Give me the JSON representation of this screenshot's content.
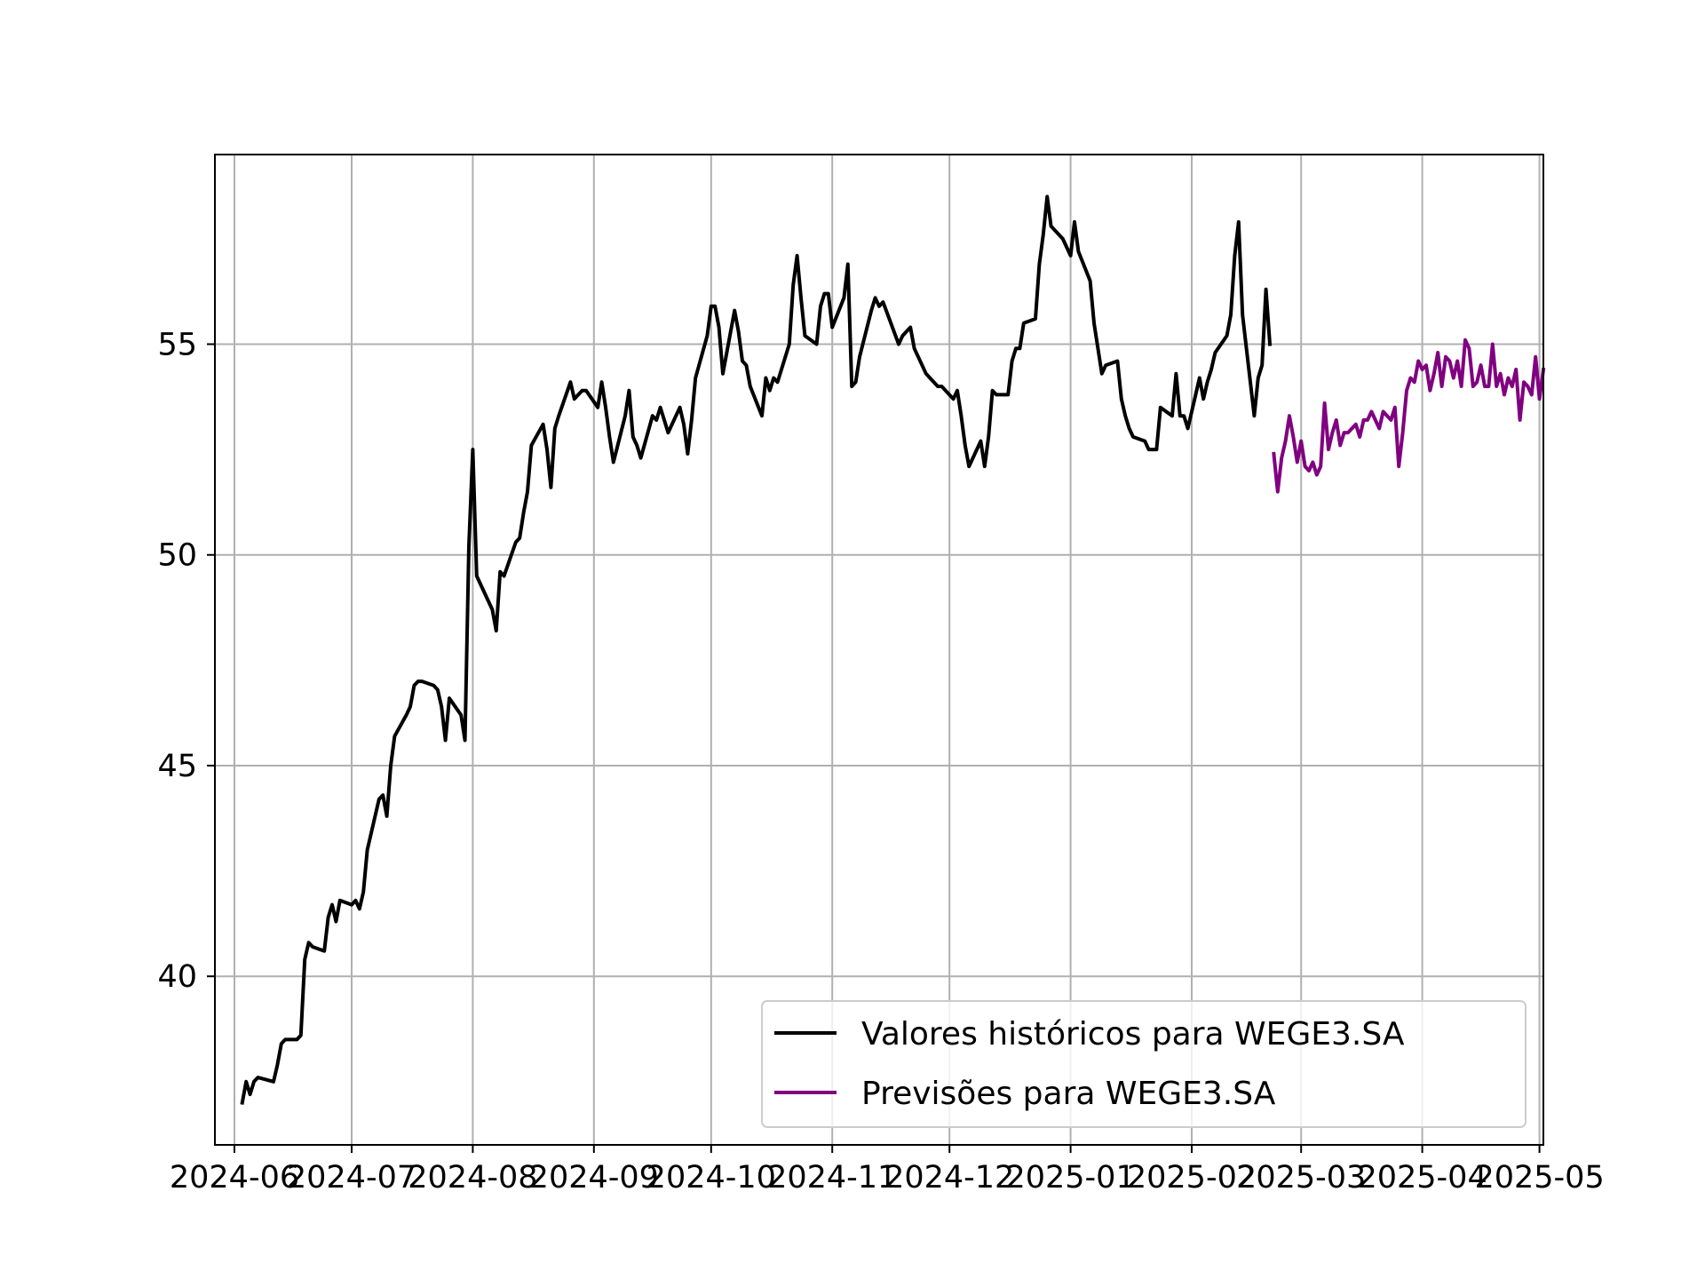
{
  "chart_data": {
    "type": "line",
    "title": "",
    "xlabel": "",
    "ylabel": "",
    "grid": true,
    "legend_position": "bottom-right",
    "xlim": [
      "2024-05-27",
      "2025-05-02"
    ],
    "ylim": [
      36,
      59.5
    ],
    "x_ticks": [
      {
        "date": "2024-06-01",
        "label": "2024-06"
      },
      {
        "date": "2024-07-01",
        "label": "2024-07"
      },
      {
        "date": "2024-08-01",
        "label": "2024-08"
      },
      {
        "date": "2024-09-01",
        "label": "2024-09"
      },
      {
        "date": "2024-10-01",
        "label": "2024-10"
      },
      {
        "date": "2024-11-01",
        "label": "2024-11"
      },
      {
        "date": "2024-12-01",
        "label": "2024-12"
      },
      {
        "date": "2025-01-01",
        "label": "2025-01"
      },
      {
        "date": "2025-02-01",
        "label": "2025-02"
      },
      {
        "date": "2025-03-01",
        "label": "2025-03"
      },
      {
        "date": "2025-04-01",
        "label": "2025-04"
      },
      {
        "date": "2025-05-01",
        "label": "2025-05"
      }
    ],
    "y_ticks": [
      {
        "value": 40,
        "label": "40"
      },
      {
        "value": 45,
        "label": "45"
      },
      {
        "value": 50,
        "label": "50"
      },
      {
        "value": 55,
        "label": "55"
      }
    ],
    "series": [
      {
        "name": "Valores históricos para WEGE3.SA",
        "color": "#000000",
        "points": [
          [
            "2024-06-03",
            37.0
          ],
          [
            "2024-06-04",
            37.5
          ],
          [
            "2024-06-05",
            37.2
          ],
          [
            "2024-06-06",
            37.5
          ],
          [
            "2024-06-07",
            37.6
          ],
          [
            "2024-06-11",
            37.5
          ],
          [
            "2024-06-12",
            37.9
          ],
          [
            "2024-06-13",
            38.4
          ],
          [
            "2024-06-14",
            38.5
          ],
          [
            "2024-06-17",
            38.5
          ],
          [
            "2024-06-18",
            38.6
          ],
          [
            "2024-06-19",
            40.4
          ],
          [
            "2024-06-20",
            40.8
          ],
          [
            "2024-06-21",
            40.7
          ],
          [
            "2024-06-24",
            40.6
          ],
          [
            "2024-06-25",
            41.4
          ],
          [
            "2024-06-26",
            41.7
          ],
          [
            "2024-06-27",
            41.3
          ],
          [
            "2024-06-28",
            41.8
          ],
          [
            "2024-07-01",
            41.7
          ],
          [
            "2024-07-02",
            41.8
          ],
          [
            "2024-07-03",
            41.6
          ],
          [
            "2024-07-04",
            42.0
          ],
          [
            "2024-07-05",
            43.0
          ],
          [
            "2024-07-08",
            44.2
          ],
          [
            "2024-07-09",
            44.3
          ],
          [
            "2024-07-10",
            43.8
          ],
          [
            "2024-07-11",
            45.0
          ],
          [
            "2024-07-12",
            45.7
          ],
          [
            "2024-07-15",
            46.2
          ],
          [
            "2024-07-16",
            46.4
          ],
          [
            "2024-07-17",
            46.9
          ],
          [
            "2024-07-18",
            47.0
          ],
          [
            "2024-07-19",
            47.0
          ],
          [
            "2024-07-22",
            46.9
          ],
          [
            "2024-07-23",
            46.8
          ],
          [
            "2024-07-24",
            46.4
          ],
          [
            "2024-07-25",
            45.6
          ],
          [
            "2024-07-26",
            46.6
          ],
          [
            "2024-07-29",
            46.2
          ],
          [
            "2024-07-30",
            45.6
          ],
          [
            "2024-07-31",
            50.2
          ],
          [
            "2024-08-01",
            52.5
          ],
          [
            "2024-08-02",
            49.5
          ],
          [
            "2024-08-05",
            48.9
          ],
          [
            "2024-08-06",
            48.7
          ],
          [
            "2024-08-07",
            48.2
          ],
          [
            "2024-08-08",
            49.6
          ],
          [
            "2024-08-09",
            49.5
          ],
          [
            "2024-08-12",
            50.3
          ],
          [
            "2024-08-13",
            50.4
          ],
          [
            "2024-08-14",
            51.0
          ],
          [
            "2024-08-15",
            51.5
          ],
          [
            "2024-08-16",
            52.6
          ],
          [
            "2024-08-19",
            53.1
          ],
          [
            "2024-08-20",
            52.5
          ],
          [
            "2024-08-21",
            51.6
          ],
          [
            "2024-08-22",
            53.0
          ],
          [
            "2024-08-23",
            53.3
          ],
          [
            "2024-08-26",
            54.1
          ],
          [
            "2024-08-27",
            53.7
          ],
          [
            "2024-08-28",
            53.8
          ],
          [
            "2024-08-29",
            53.9
          ],
          [
            "2024-08-30",
            53.9
          ],
          [
            "2024-09-02",
            53.5
          ],
          [
            "2024-09-03",
            54.1
          ],
          [
            "2024-09-04",
            53.5
          ],
          [
            "2024-09-05",
            52.8
          ],
          [
            "2024-09-06",
            52.2
          ],
          [
            "2024-09-09",
            53.3
          ],
          [
            "2024-09-10",
            53.9
          ],
          [
            "2024-09-11",
            52.8
          ],
          [
            "2024-09-12",
            52.6
          ],
          [
            "2024-09-13",
            52.3
          ],
          [
            "2024-09-16",
            53.3
          ],
          [
            "2024-09-17",
            53.2
          ],
          [
            "2024-09-18",
            53.5
          ],
          [
            "2024-09-19",
            53.2
          ],
          [
            "2024-09-20",
            52.9
          ],
          [
            "2024-09-23",
            53.5
          ],
          [
            "2024-09-24",
            53.1
          ],
          [
            "2024-09-25",
            52.4
          ],
          [
            "2024-09-26",
            53.2
          ],
          [
            "2024-09-27",
            54.2
          ],
          [
            "2024-09-30",
            55.2
          ],
          [
            "2024-10-01",
            55.9
          ],
          [
            "2024-10-02",
            55.9
          ],
          [
            "2024-10-03",
            55.4
          ],
          [
            "2024-10-04",
            54.3
          ],
          [
            "2024-10-07",
            55.8
          ],
          [
            "2024-10-08",
            55.3
          ],
          [
            "2024-10-09",
            54.6
          ],
          [
            "2024-10-10",
            54.5
          ],
          [
            "2024-10-11",
            54.0
          ],
          [
            "2024-10-14",
            53.3
          ],
          [
            "2024-10-15",
            54.2
          ],
          [
            "2024-10-16",
            53.9
          ],
          [
            "2024-10-17",
            54.2
          ],
          [
            "2024-10-18",
            54.1
          ],
          [
            "2024-10-21",
            55.0
          ],
          [
            "2024-10-22",
            56.4
          ],
          [
            "2024-10-23",
            57.1
          ],
          [
            "2024-10-24",
            56.1
          ],
          [
            "2024-10-25",
            55.2
          ],
          [
            "2024-10-28",
            55.0
          ],
          [
            "2024-10-29",
            55.9
          ],
          [
            "2024-10-30",
            56.2
          ],
          [
            "2024-10-31",
            56.2
          ],
          [
            "2024-11-01",
            55.4
          ],
          [
            "2024-11-04",
            56.1
          ],
          [
            "2024-11-05",
            56.9
          ],
          [
            "2024-11-06",
            54.0
          ],
          [
            "2024-11-07",
            54.1
          ],
          [
            "2024-11-08",
            54.7
          ],
          [
            "2024-11-11",
            55.8
          ],
          [
            "2024-11-12",
            56.1
          ],
          [
            "2024-11-13",
            55.9
          ],
          [
            "2024-11-14",
            56.0
          ],
          [
            "2024-11-18",
            55.0
          ],
          [
            "2024-11-19",
            55.2
          ],
          [
            "2024-11-21",
            55.4
          ],
          [
            "2024-11-22",
            54.9
          ],
          [
            "2024-11-25",
            54.3
          ],
          [
            "2024-11-26",
            54.2
          ],
          [
            "2024-11-27",
            54.1
          ],
          [
            "2024-11-28",
            54.0
          ],
          [
            "2024-11-29",
            54.0
          ],
          [
            "2024-12-02",
            53.7
          ],
          [
            "2024-12-03",
            53.9
          ],
          [
            "2024-12-04",
            53.3
          ],
          [
            "2024-12-05",
            52.6
          ],
          [
            "2024-12-06",
            52.1
          ],
          [
            "2024-12-09",
            52.7
          ],
          [
            "2024-12-10",
            52.1
          ],
          [
            "2024-12-11",
            52.8
          ],
          [
            "2024-12-12",
            53.9
          ],
          [
            "2024-12-13",
            53.8
          ],
          [
            "2024-12-16",
            53.8
          ],
          [
            "2024-12-17",
            54.6
          ],
          [
            "2024-12-18",
            54.9
          ],
          [
            "2024-12-19",
            54.9
          ],
          [
            "2024-12-20",
            55.5
          ],
          [
            "2024-12-23",
            55.6
          ],
          [
            "2024-12-24",
            56.9
          ],
          [
            "2024-12-25",
            57.6
          ],
          [
            "2024-12-26",
            58.5
          ],
          [
            "2024-12-27",
            57.8
          ],
          [
            "2024-12-30",
            57.5
          ],
          [
            "2024-12-31",
            57.3
          ],
          [
            "2025-01-01",
            57.1
          ],
          [
            "2025-01-02",
            57.9
          ],
          [
            "2025-01-03",
            57.2
          ],
          [
            "2025-01-06",
            56.5
          ],
          [
            "2025-01-07",
            55.5
          ],
          [
            "2025-01-08",
            54.9
          ],
          [
            "2025-01-09",
            54.3
          ],
          [
            "2025-01-10",
            54.5
          ],
          [
            "2025-01-13",
            54.6
          ],
          [
            "2025-01-14",
            53.7
          ],
          [
            "2025-01-15",
            53.3
          ],
          [
            "2025-01-16",
            53.0
          ],
          [
            "2025-01-17",
            52.8
          ],
          [
            "2025-01-20",
            52.7
          ],
          [
            "2025-01-21",
            52.5
          ],
          [
            "2025-01-22",
            52.5
          ],
          [
            "2025-01-23",
            52.5
          ],
          [
            "2025-01-24",
            53.5
          ],
          [
            "2025-01-27",
            53.3
          ],
          [
            "2025-01-28",
            54.3
          ],
          [
            "2025-01-29",
            53.3
          ],
          [
            "2025-01-30",
            53.3
          ],
          [
            "2025-01-31",
            53.0
          ],
          [
            "2025-02-03",
            54.2
          ],
          [
            "2025-02-04",
            53.7
          ],
          [
            "2025-02-05",
            54.1
          ],
          [
            "2025-02-06",
            54.4
          ],
          [
            "2025-02-07",
            54.8
          ],
          [
            "2025-02-10",
            55.2
          ],
          [
            "2025-02-11",
            55.7
          ],
          [
            "2025-02-12",
            57.1
          ],
          [
            "2025-02-13",
            57.9
          ],
          [
            "2025-02-14",
            55.7
          ],
          [
            "2025-02-17",
            53.3
          ],
          [
            "2025-02-18",
            54.2
          ],
          [
            "2025-02-19",
            54.5
          ],
          [
            "2025-02-20",
            56.3
          ],
          [
            "2025-02-21",
            55.0
          ]
        ]
      },
      {
        "name": "Previsões para WEGE3.SA",
        "color": "#800080",
        "points": [
          [
            "2025-02-22",
            52.4
          ],
          [
            "2025-02-23",
            51.5
          ],
          [
            "2025-02-24",
            52.3
          ],
          [
            "2025-02-25",
            52.7
          ],
          [
            "2025-02-26",
            53.3
          ],
          [
            "2025-02-27",
            52.8
          ],
          [
            "2025-02-28",
            52.2
          ],
          [
            "2025-03-01",
            52.7
          ],
          [
            "2025-03-02",
            52.1
          ],
          [
            "2025-03-03",
            52.0
          ],
          [
            "2025-03-04",
            52.2
          ],
          [
            "2025-03-05",
            51.9
          ],
          [
            "2025-03-06",
            52.1
          ],
          [
            "2025-03-07",
            53.6
          ],
          [
            "2025-03-08",
            52.5
          ],
          [
            "2025-03-09",
            52.9
          ],
          [
            "2025-03-10",
            53.2
          ],
          [
            "2025-03-11",
            52.6
          ],
          [
            "2025-03-12",
            52.9
          ],
          [
            "2025-03-13",
            52.9
          ],
          [
            "2025-03-14",
            53.0
          ],
          [
            "2025-03-15",
            53.1
          ],
          [
            "2025-03-16",
            52.8
          ],
          [
            "2025-03-17",
            53.2
          ],
          [
            "2025-03-18",
            53.2
          ],
          [
            "2025-03-19",
            53.4
          ],
          [
            "2025-03-20",
            53.2
          ],
          [
            "2025-03-21",
            53.0
          ],
          [
            "2025-03-22",
            53.4
          ],
          [
            "2025-03-23",
            53.3
          ],
          [
            "2025-03-24",
            53.2
          ],
          [
            "2025-03-25",
            53.5
          ],
          [
            "2025-03-26",
            52.1
          ],
          [
            "2025-03-27",
            52.9
          ],
          [
            "2025-03-28",
            53.9
          ],
          [
            "2025-03-29",
            54.2
          ],
          [
            "2025-03-30",
            54.1
          ],
          [
            "2025-03-31",
            54.6
          ],
          [
            "2025-04-01",
            54.4
          ],
          [
            "2025-04-02",
            54.5
          ],
          [
            "2025-04-03",
            53.9
          ],
          [
            "2025-04-04",
            54.3
          ],
          [
            "2025-04-05",
            54.8
          ],
          [
            "2025-04-06",
            54.0
          ],
          [
            "2025-04-07",
            54.7
          ],
          [
            "2025-04-08",
            54.6
          ],
          [
            "2025-04-09",
            54.2
          ],
          [
            "2025-04-10",
            54.6
          ],
          [
            "2025-04-11",
            54.0
          ],
          [
            "2025-04-12",
            55.1
          ],
          [
            "2025-04-13",
            54.9
          ],
          [
            "2025-04-14",
            54.0
          ],
          [
            "2025-04-15",
            54.1
          ],
          [
            "2025-04-16",
            54.5
          ],
          [
            "2025-04-17",
            54.0
          ],
          [
            "2025-04-18",
            54.0
          ],
          [
            "2025-04-19",
            55.0
          ],
          [
            "2025-04-20",
            54.0
          ],
          [
            "2025-04-21",
            54.3
          ],
          [
            "2025-04-22",
            53.8
          ],
          [
            "2025-04-23",
            54.2
          ],
          [
            "2025-04-24",
            54.0
          ],
          [
            "2025-04-25",
            54.4
          ],
          [
            "2025-04-26",
            53.2
          ],
          [
            "2025-04-27",
            54.1
          ],
          [
            "2025-04-28",
            54.0
          ],
          [
            "2025-04-29",
            53.8
          ],
          [
            "2025-04-30",
            54.7
          ],
          [
            "2025-05-01",
            53.7
          ],
          [
            "2025-05-02",
            54.4
          ]
        ]
      }
    ]
  }
}
